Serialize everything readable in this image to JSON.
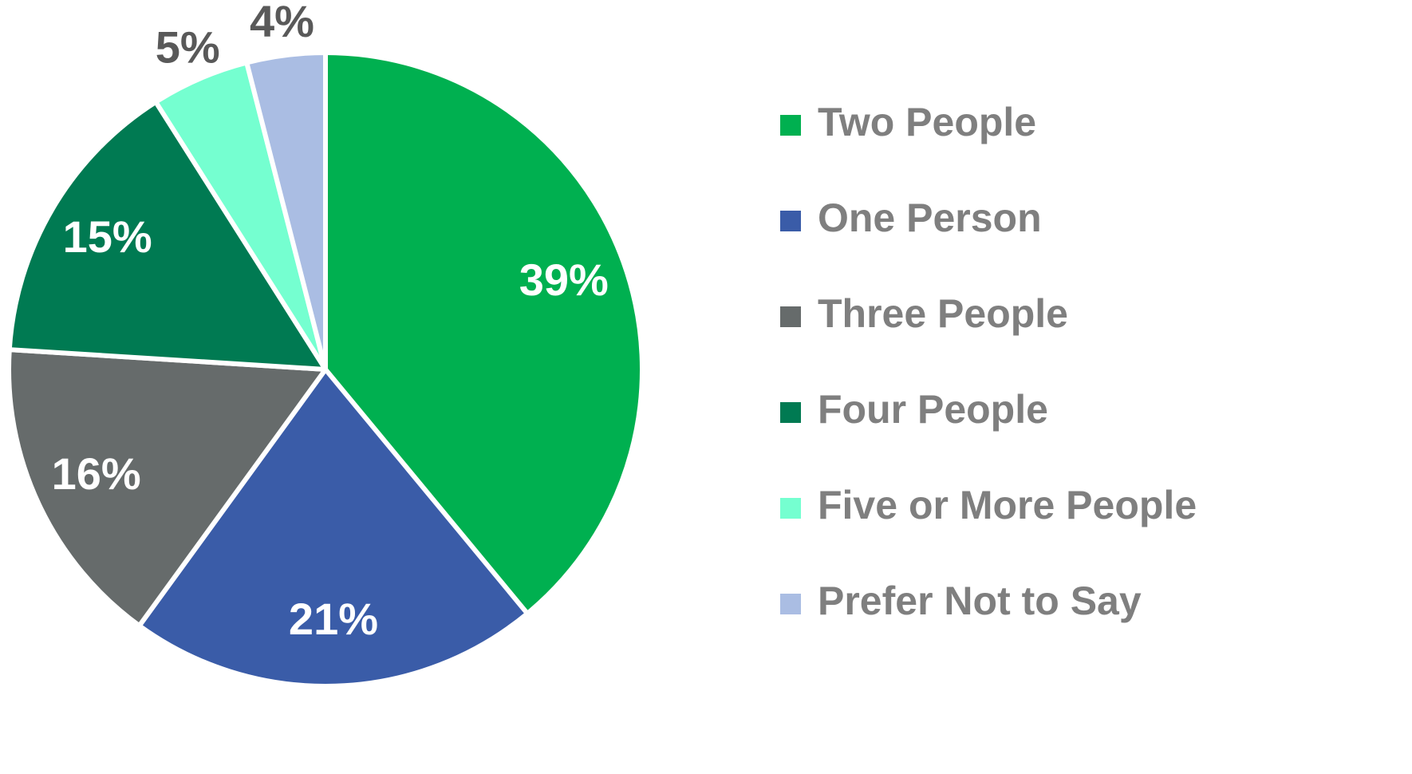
{
  "chart_data": {
    "type": "pie",
    "categories": [
      "Two People",
      "One Person",
      "Three People",
      "Four People",
      "Five or More People",
      "Prefer Not to Say"
    ],
    "values": [
      39,
      21,
      16,
      15,
      5,
      4
    ],
    "value_labels": [
      "39%",
      "21%",
      "16%",
      "15%",
      "5%",
      "4%"
    ],
    "colors": [
      "#00b050",
      "#3a5ca8",
      "#666b6b",
      "#007a52",
      "#75ffd0",
      "#aabde3"
    ],
    "legend": "right"
  }
}
